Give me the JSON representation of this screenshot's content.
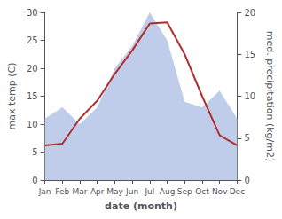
{
  "chart_data": {
    "type": "line",
    "categories": [
      "Jan",
      "Feb",
      "Mar",
      "Apr",
      "May",
      "Jun",
      "Jul",
      "Aug",
      "Sep",
      "Oct",
      "Nov",
      "Dec"
    ],
    "series": [
      {
        "type": "area",
        "color": "#b8c8e8",
        "values": [
          11,
          13,
          10,
          13,
          20,
          24,
          30,
          25,
          14,
          13,
          16,
          11
        ]
      },
      {
        "type": "line",
        "color": "#b03030",
        "values": [
          6.2,
          6.5,
          11.0,
          14.2,
          19.0,
          23.2,
          28.0,
          28.2,
          22.5,
          15.0,
          8.0,
          6.2
        ]
      }
    ],
    "xlabel": "date (month)",
    "ylabel": "max temp (C)",
    "y2label": "med. precipitation (kg/m2)",
    "ylim": [
      0,
      30
    ],
    "yticks": [
      0,
      5,
      10,
      15,
      20,
      25,
      30
    ],
    "y2lim": [
      0,
      20
    ],
    "y2ticks": [
      0,
      5,
      10,
      15,
      20
    ],
    "grid": false
  }
}
